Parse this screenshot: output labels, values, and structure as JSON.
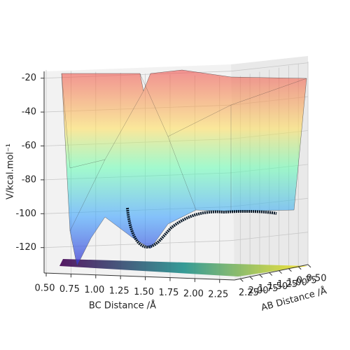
{
  "chart_data": {
    "type": "surface3d",
    "xlabel": "BC Distance /Å",
    "ylabel": "AB Distance /Å",
    "zlabel": "V/kcal.mol⁻¹",
    "xlim": [
      0.5,
      2.4
    ],
    "xticks": [
      0.5,
      0.75,
      1.0,
      1.25,
      1.5,
      1.75,
      2.0,
      2.25
    ],
    "xticklabels": [
      "0.50",
      "0.75",
      "1.00",
      "1.25",
      "1.50",
      "1.75",
      "2.00",
      "2.25"
    ],
    "ylim": [
      0.5,
      2.4
    ],
    "yticks": [
      0.5,
      0.75,
      1.0,
      1.25,
      1.5,
      1.75,
      2.0,
      2.25
    ],
    "yticklabels": [
      "0.50",
      "0.75",
      "1.00",
      "1.25",
      "1.50",
      "1.75",
      "2.00",
      "2.25"
    ],
    "zlim": [
      -135,
      -16
    ],
    "zticks": [
      -20,
      -40,
      -60,
      -80,
      -100,
      -120
    ],
    "grid": true,
    "colormap": "jet"
  }
}
